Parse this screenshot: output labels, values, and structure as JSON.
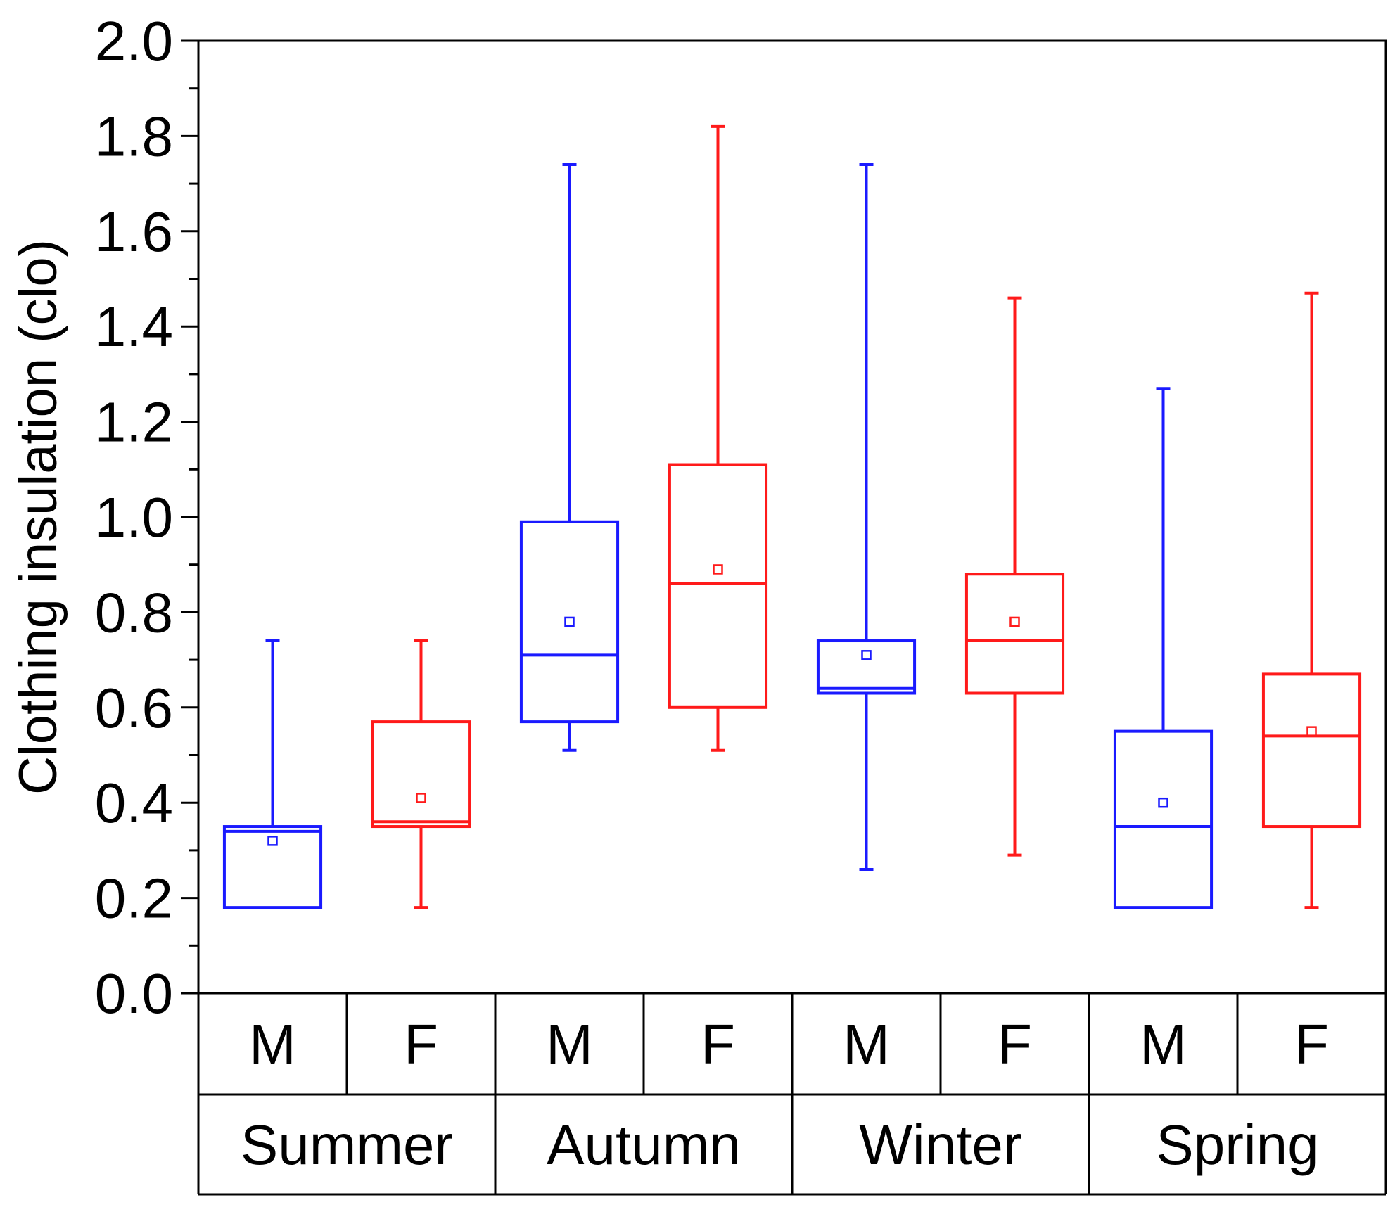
{
  "chart_data": {
    "type": "box",
    "title": "",
    "ylabel": "Clothing insulation  (clo)",
    "xlabel": "",
    "ylim": [
      0.0,
      2.0
    ],
    "yticks": [
      "0.0",
      "0.2",
      "0.4",
      "0.6",
      "0.8",
      "1.0",
      "1.2",
      "1.4",
      "1.6",
      "1.8",
      "2.0"
    ],
    "minor_ticks": true,
    "grid": false,
    "colors": {
      "M": "#1a1aff",
      "F": "#ff1a1a"
    },
    "seasons": [
      "Summer",
      "Autumn",
      "Winter",
      "Spring"
    ],
    "genders": [
      "M",
      "F"
    ],
    "boxes": [
      {
        "season": "Summer",
        "gender": "M",
        "min": 0.18,
        "q1": 0.18,
        "median": 0.34,
        "q3": 0.35,
        "max": 0.74,
        "mean": 0.32
      },
      {
        "season": "Summer",
        "gender": "F",
        "min": 0.18,
        "q1": 0.35,
        "median": 0.36,
        "q3": 0.57,
        "max": 0.74,
        "mean": 0.41
      },
      {
        "season": "Autumn",
        "gender": "M",
        "min": 0.51,
        "q1": 0.57,
        "median": 0.71,
        "q3": 0.99,
        "max": 1.74,
        "mean": 0.78
      },
      {
        "season": "Autumn",
        "gender": "F",
        "min": 0.51,
        "q1": 0.6,
        "median": 0.86,
        "q3": 1.11,
        "max": 1.82,
        "mean": 0.89
      },
      {
        "season": "Winter",
        "gender": "M",
        "min": 0.26,
        "q1": 0.63,
        "median": 0.64,
        "q3": 0.74,
        "max": 1.74,
        "mean": 0.71
      },
      {
        "season": "Winter",
        "gender": "F",
        "min": 0.29,
        "q1": 0.63,
        "median": 0.74,
        "q3": 0.88,
        "max": 1.46,
        "mean": 0.78
      },
      {
        "season": "Spring",
        "gender": "M",
        "min": 0.18,
        "q1": 0.18,
        "median": 0.35,
        "q3": 0.55,
        "max": 1.27,
        "mean": 0.4
      },
      {
        "season": "Spring",
        "gender": "F",
        "min": 0.18,
        "q1": 0.35,
        "median": 0.54,
        "q3": 0.67,
        "max": 1.47,
        "mean": 0.55
      }
    ]
  }
}
